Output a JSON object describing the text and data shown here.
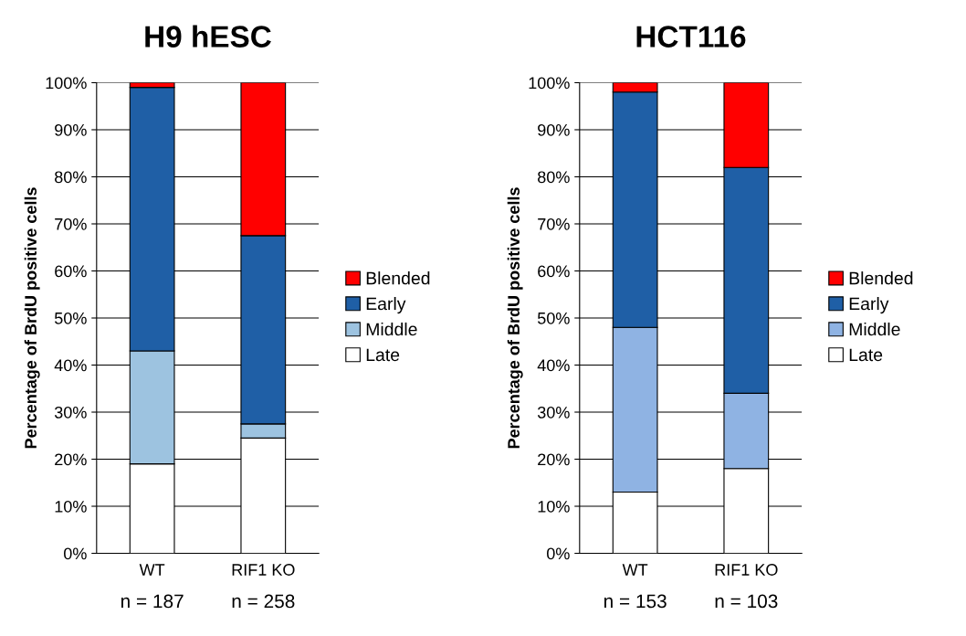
{
  "chart_data": [
    {
      "type": "bar",
      "title": "H9 hESC",
      "ylabel": "Percentage of BrdU positive cells",
      "categories": [
        "WT",
        "RIF1 KO"
      ],
      "stacked": true,
      "grid": "y",
      "legend": "right",
      "ylim": [
        0,
        100
      ],
      "yticks": [
        {
          "value": 0,
          "label": "0%"
        },
        {
          "value": 10,
          "label": "10%"
        },
        {
          "value": 20,
          "label": "20%"
        },
        {
          "value": 30,
          "label": "30%"
        },
        {
          "value": 40,
          "label": "40%"
        },
        {
          "value": 50,
          "label": "50%"
        },
        {
          "value": 60,
          "label": "60%"
        },
        {
          "value": 70,
          "label": "70%"
        },
        {
          "value": 80,
          "label": "80%"
        },
        {
          "value": 90,
          "label": "90%"
        },
        {
          "value": 100,
          "label": "100%"
        }
      ],
      "series": [
        {
          "name": "Late",
          "color": "#ffffff",
          "values": [
            19,
            24.5
          ]
        },
        {
          "name": "Middle",
          "color": "#9dc3e0",
          "values": [
            24,
            3
          ]
        },
        {
          "name": "Early",
          "color": "#1f5fa6",
          "values": [
            56,
            40
          ]
        },
        {
          "name": "Blended",
          "color": "#ff0000",
          "values": [
            1,
            32.5
          ]
        }
      ],
      "annotations": [
        "n = 187",
        "n = 258"
      ]
    },
    {
      "type": "bar",
      "title": "HCT116",
      "ylabel": "Percentage of BrdU positive cells",
      "categories": [
        "WT",
        "RIF1 KO"
      ],
      "stacked": true,
      "grid": "y",
      "legend": "right",
      "ylim": [
        0,
        100
      ],
      "yticks": [
        {
          "value": 0,
          "label": "0%"
        },
        {
          "value": 10,
          "label": "10%"
        },
        {
          "value": 20,
          "label": "20%"
        },
        {
          "value": 30,
          "label": "30%"
        },
        {
          "value": 40,
          "label": "40%"
        },
        {
          "value": 50,
          "label": "50%"
        },
        {
          "value": 60,
          "label": "60%"
        },
        {
          "value": 70,
          "label": "70%"
        },
        {
          "value": 80,
          "label": "80%"
        },
        {
          "value": 90,
          "label": "90%"
        },
        {
          "value": 100,
          "label": "100%"
        }
      ],
      "series": [
        {
          "name": "Late",
          "color": "#ffffff",
          "values": [
            13,
            18
          ]
        },
        {
          "name": "Middle",
          "color": "#8fb3e3",
          "values": [
            35,
            16
          ]
        },
        {
          "name": "Early",
          "color": "#1f5fa6",
          "values": [
            50,
            48
          ]
        },
        {
          "name": "Blended",
          "color": "#ff0000",
          "values": [
            2,
            18
          ]
        }
      ],
      "annotations": [
        "n = 153",
        "n = 103"
      ]
    }
  ]
}
